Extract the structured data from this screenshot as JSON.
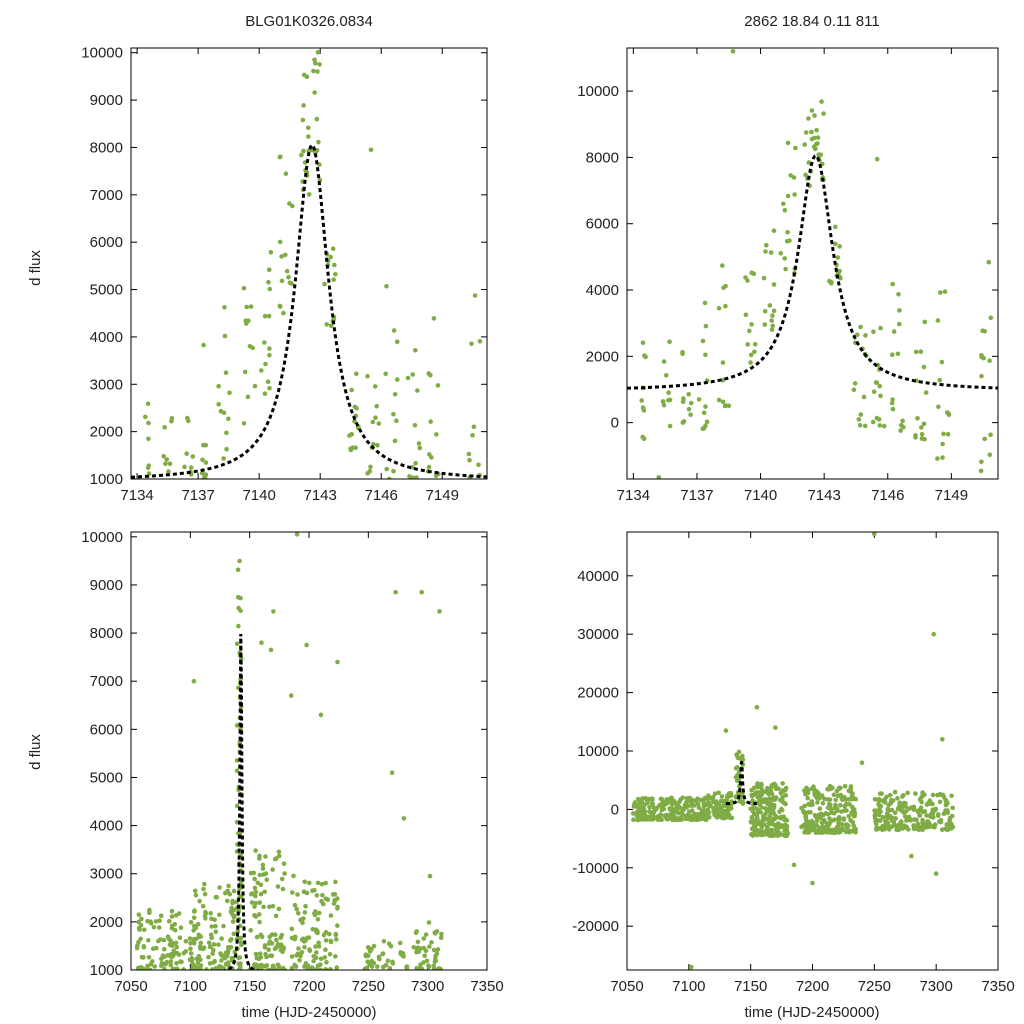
{
  "figure": {
    "left_title": "BLG01K0326.0834",
    "right_title": "2862   18.84   0.11   811"
  },
  "colors": {
    "points": "#7fac44",
    "fit": "#000000",
    "frame": "#000000"
  },
  "chart_data": [
    {
      "id": "p1",
      "type": "scatter",
      "title": "BLG01K0326.0834",
      "xlabel": "",
      "ylabel": "d flux",
      "xlim": [
        7133.7,
        7151.2
      ],
      "ylim": [
        1000,
        10100
      ],
      "xticks": [
        7134,
        7137,
        7140,
        7143,
        7146,
        7149
      ],
      "yticks": [
        1000,
        2000,
        3000,
        4000,
        5000,
        6000,
        7000,
        8000,
        9000,
        10000
      ],
      "fit": {
        "type": "lorentzian",
        "t0": 7142.6,
        "width": 1.0,
        "peak": 7100,
        "baseline": 950
      },
      "scatter_seeds": [
        {
          "t": 7134.5,
          "w": 0.15,
          "ylo": 1000,
          "yhi": 2600,
          "n": 7
        },
        {
          "t": 7135.5,
          "w": 0.25,
          "ylo": 1000,
          "yhi": 2600,
          "n": 8
        },
        {
          "t": 7136.5,
          "w": 0.25,
          "ylo": 1000,
          "yhi": 2600,
          "n": 8
        },
        {
          "t": 7137.3,
          "w": 0.2,
          "ylo": 1000,
          "yhi": 4100,
          "n": 10
        },
        {
          "t": 7138.3,
          "w": 0.3,
          "ylo": 1100,
          "yhi": 4900,
          "n": 12
        },
        {
          "t": 7139.5,
          "w": 0.3,
          "ylo": 1800,
          "yhi": 5400,
          "n": 12
        },
        {
          "t": 7140.4,
          "w": 0.3,
          "ylo": 2800,
          "yhi": 5800,
          "n": 14
        },
        {
          "t": 7141.3,
          "w": 0.35,
          "ylo": 4500,
          "yhi": 8500,
          "n": 16
        },
        {
          "t": 7142.3,
          "w": 0.3,
          "ylo": 7000,
          "yhi": 9600,
          "n": 16
        },
        {
          "t": 7142.8,
          "w": 0.2,
          "ylo": 7300,
          "yhi": 10050,
          "n": 14
        },
        {
          "t": 7143.5,
          "w": 0.3,
          "ylo": 4200,
          "yhi": 6000,
          "n": 14
        },
        {
          "t": 7144.7,
          "w": 0.3,
          "ylo": 1600,
          "yhi": 3500,
          "n": 14
        },
        {
          "t": 7145.6,
          "w": 0.3,
          "ylo": 1000,
          "yhi": 3200,
          "n": 12
        },
        {
          "t": 7146.5,
          "w": 0.3,
          "ylo": 1000,
          "yhi": 5200,
          "n": 12
        },
        {
          "t": 7147.6,
          "w": 0.3,
          "ylo": 1000,
          "yhi": 3800,
          "n": 12
        },
        {
          "t": 7148.6,
          "w": 0.3,
          "ylo": 1000,
          "yhi": 4900,
          "n": 12
        },
        {
          "t": 7150.6,
          "w": 0.3,
          "ylo": 1000,
          "yhi": 5300,
          "n": 10
        }
      ],
      "outliers": [
        {
          "x": 7145.5,
          "y": 7950
        }
      ]
    },
    {
      "id": "p2",
      "type": "scatter",
      "title": "2862   18.84   0.11   811",
      "xlabel": "",
      "ylabel": "",
      "xlim": [
        7133.7,
        7151.2
      ],
      "ylim": [
        -1700,
        11300
      ],
      "xticks": [
        7134,
        7137,
        7140,
        7143,
        7146,
        7149
      ],
      "yticks": [
        0,
        2000,
        4000,
        6000,
        8000,
        10000
      ],
      "fit": {
        "type": "lorentzian",
        "t0": 7142.6,
        "width": 1.0,
        "peak": 7100,
        "baseline": 950
      },
      "scatter_seeds": [
        {
          "t": 7134.5,
          "w": 0.15,
          "ylo": -500,
          "yhi": 2600,
          "n": 10
        },
        {
          "t": 7135.5,
          "w": 0.25,
          "ylo": -200,
          "yhi": 2600,
          "n": 10
        },
        {
          "t": 7136.5,
          "w": 0.25,
          "ylo": 0,
          "yhi": 2800,
          "n": 10
        },
        {
          "t": 7137.3,
          "w": 0.2,
          "ylo": -200,
          "yhi": 4100,
          "n": 12
        },
        {
          "t": 7138.3,
          "w": 0.3,
          "ylo": 500,
          "yhi": 4900,
          "n": 12
        },
        {
          "t": 7139.5,
          "w": 0.3,
          "ylo": 1800,
          "yhi": 5400,
          "n": 12
        },
        {
          "t": 7140.4,
          "w": 0.3,
          "ylo": 2800,
          "yhi": 5800,
          "n": 14
        },
        {
          "t": 7141.3,
          "w": 0.35,
          "ylo": 4500,
          "yhi": 8500,
          "n": 16
        },
        {
          "t": 7142.3,
          "w": 0.3,
          "ylo": 7000,
          "yhi": 9600,
          "n": 16
        },
        {
          "t": 7142.8,
          "w": 0.2,
          "ylo": 7300,
          "yhi": 10400,
          "n": 14
        },
        {
          "t": 7143.5,
          "w": 0.3,
          "ylo": 4200,
          "yhi": 6000,
          "n": 14
        },
        {
          "t": 7144.7,
          "w": 0.3,
          "ylo": -100,
          "yhi": 3500,
          "n": 14
        },
        {
          "t": 7145.6,
          "w": 0.3,
          "ylo": -300,
          "yhi": 3200,
          "n": 14
        },
        {
          "t": 7146.5,
          "w": 0.3,
          "ylo": -300,
          "yhi": 5200,
          "n": 14
        },
        {
          "t": 7147.6,
          "w": 0.3,
          "ylo": -500,
          "yhi": 3800,
          "n": 14
        },
        {
          "t": 7148.6,
          "w": 0.3,
          "ylo": -1100,
          "yhi": 4900,
          "n": 14
        },
        {
          "t": 7150.6,
          "w": 0.3,
          "ylo": -1500,
          "yhi": 5300,
          "n": 14
        }
      ],
      "outliers": [
        {
          "x": 7145.5,
          "y": 7950
        },
        {
          "x": 7138.7,
          "y": 11200
        },
        {
          "x": 7135.2,
          "y": -1650
        }
      ]
    },
    {
      "id": "p3",
      "type": "scatter",
      "title": "",
      "xlabel": "time (HJD-2450000)",
      "ylabel": "d flux",
      "xlim": [
        7050,
        7350
      ],
      "ylim": [
        1000,
        10100
      ],
      "xticks": [
        7050,
        7100,
        7150,
        7200,
        7250,
        7300,
        7350
      ],
      "yticks": [
        1000,
        2000,
        3000,
        4000,
        5000,
        6000,
        7000,
        8000,
        9000,
        10000
      ],
      "fit": {
        "type": "lorentzian",
        "t0": 7142.6,
        "width": 1.0,
        "peak": 7100,
        "baseline": 950
      },
      "scatter_seeds": [
        {
          "t": 7080,
          "w": 25,
          "ylo": 1000,
          "yhi": 2300,
          "n": 110
        },
        {
          "t": 7120,
          "w": 18,
          "ylo": 1000,
          "yhi": 2800,
          "n": 120
        },
        {
          "t": 7141,
          "w": 2,
          "ylo": 1000,
          "yhi": 10050,
          "n": 70
        },
        {
          "t": 7165,
          "w": 15,
          "ylo": 1000,
          "yhi": 3500,
          "n": 110
        },
        {
          "t": 7205,
          "w": 20,
          "ylo": 1000,
          "yhi": 3000,
          "n": 110
        },
        {
          "t": 7265,
          "w": 18,
          "ylo": 1000,
          "yhi": 1600,
          "n": 40
        },
        {
          "t": 7300,
          "w": 12,
          "ylo": 1000,
          "yhi": 2000,
          "n": 45
        }
      ],
      "outliers": [
        {
          "x": 7103,
          "y": 7000
        },
        {
          "x": 7190,
          "y": 10050
        },
        {
          "x": 7160,
          "y": 7800
        },
        {
          "x": 7168,
          "y": 7650
        },
        {
          "x": 7170,
          "y": 8450
        },
        {
          "x": 7198,
          "y": 7750
        },
        {
          "x": 7224,
          "y": 7400
        },
        {
          "x": 7273,
          "y": 8850
        },
        {
          "x": 7295,
          "y": 8850
        },
        {
          "x": 7310,
          "y": 8450
        },
        {
          "x": 7185,
          "y": 6700
        },
        {
          "x": 7210,
          "y": 6300
        },
        {
          "x": 7270,
          "y": 5100
        },
        {
          "x": 7280,
          "y": 4150
        },
        {
          "x": 7302,
          "y": 2950
        }
      ]
    },
    {
      "id": "p4",
      "type": "scatter",
      "title": "",
      "xlabel": "time (HJD-2450000)",
      "ylabel": "",
      "xlim": [
        7050,
        7350
      ],
      "ylim": [
        -27500,
        47500
      ],
      "xticks": [
        7050,
        7100,
        7150,
        7200,
        7250,
        7300,
        7350
      ],
      "yticks": [
        -20000,
        -10000,
        0,
        10000,
        20000,
        30000,
        40000
      ],
      "fit": {
        "type": "lorentzian",
        "t0": 7142.6,
        "width": 1.0,
        "peak": 7100,
        "baseline": 950,
        "xrange": [
          7130,
          7155
        ]
      },
      "scatter_seeds": [
        {
          "t": 7085,
          "w": 30,
          "ylo": -1800,
          "yhi": 2000,
          "n": 220
        },
        {
          "t": 7125,
          "w": 10,
          "ylo": -1500,
          "yhi": 3000,
          "n": 80
        },
        {
          "t": 7141,
          "w": 3,
          "ylo": 1000,
          "yhi": 10500,
          "n": 30
        },
        {
          "t": 7165,
          "w": 15,
          "ylo": -4500,
          "yhi": 4500,
          "n": 220
        },
        {
          "t": 7213,
          "w": 22,
          "ylo": -4000,
          "yhi": 4000,
          "n": 220
        },
        {
          "t": 7282,
          "w": 32,
          "ylo": -3500,
          "yhi": 3000,
          "n": 220
        }
      ],
      "outliers": [
        {
          "x": 7250,
          "y": 47200
        },
        {
          "x": 7298,
          "y": 30000
        },
        {
          "x": 7102,
          "y": -27000
        },
        {
          "x": 7200,
          "y": -12600
        },
        {
          "x": 7155,
          "y": 17500
        },
        {
          "x": 7170,
          "y": 14000
        },
        {
          "x": 7130,
          "y": 13500
        },
        {
          "x": 7305,
          "y": 12000
        },
        {
          "x": 7240,
          "y": 8000
        },
        {
          "x": 7185,
          "y": -9500
        },
        {
          "x": 7300,
          "y": -11000
        },
        {
          "x": 7280,
          "y": -8000
        }
      ]
    }
  ]
}
